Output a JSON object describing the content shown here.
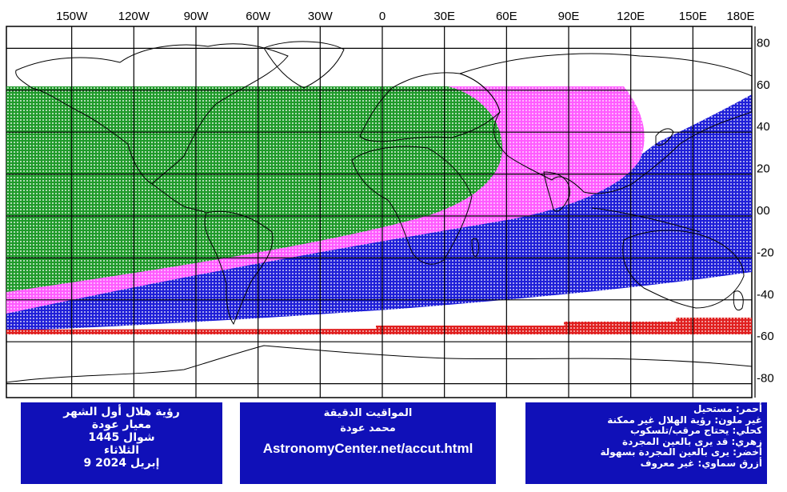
{
  "colors": {
    "green": "#1f9a2a",
    "magenta": "#ff5cff",
    "blue": "#1f1fd8",
    "red": "#e02020",
    "panel": "#1010b8",
    "grid": "#000000"
  },
  "axes": {
    "lon_labels": [
      "150W",
      "120W",
      "90W",
      "60W",
      "30W",
      "0",
      "30E",
      "60E",
      "90E",
      "120E",
      "150E",
      "180E"
    ],
    "lat_labels": [
      "80",
      "60",
      "40",
      "20",
      "00",
      "-20",
      "-40",
      "-60",
      "-80"
    ]
  },
  "legend_lines": [
    "أحمر: مستحيل",
    "غير ملون: رؤية الهلال غير ممكنة",
    "كحلي: يحتاج مرقب/تلسكوب",
    "زهري: قد يرى بالعين المجردة",
    "أخضر: يرى بالعين المجردة بسهولة",
    "أزرق سماوي: غير معروف"
  ],
  "title_lines": [
    "رؤية هلال أول الشهر",
    "معيار عودة",
    "شوال 1445",
    "الثلاثاء",
    "9 إبريل 2024"
  ],
  "credit": {
    "heading": "المواقيت الدقيقة",
    "author": "محمد عودة",
    "url": "AstronomyCenter.net/accut.html"
  },
  "zones": [
    {
      "name": "green",
      "color_key": "green"
    },
    {
      "name": "magenta",
      "color_key": "magenta"
    },
    {
      "name": "blue",
      "color_key": "blue"
    },
    {
      "name": "red",
      "color_key": "red"
    }
  ]
}
